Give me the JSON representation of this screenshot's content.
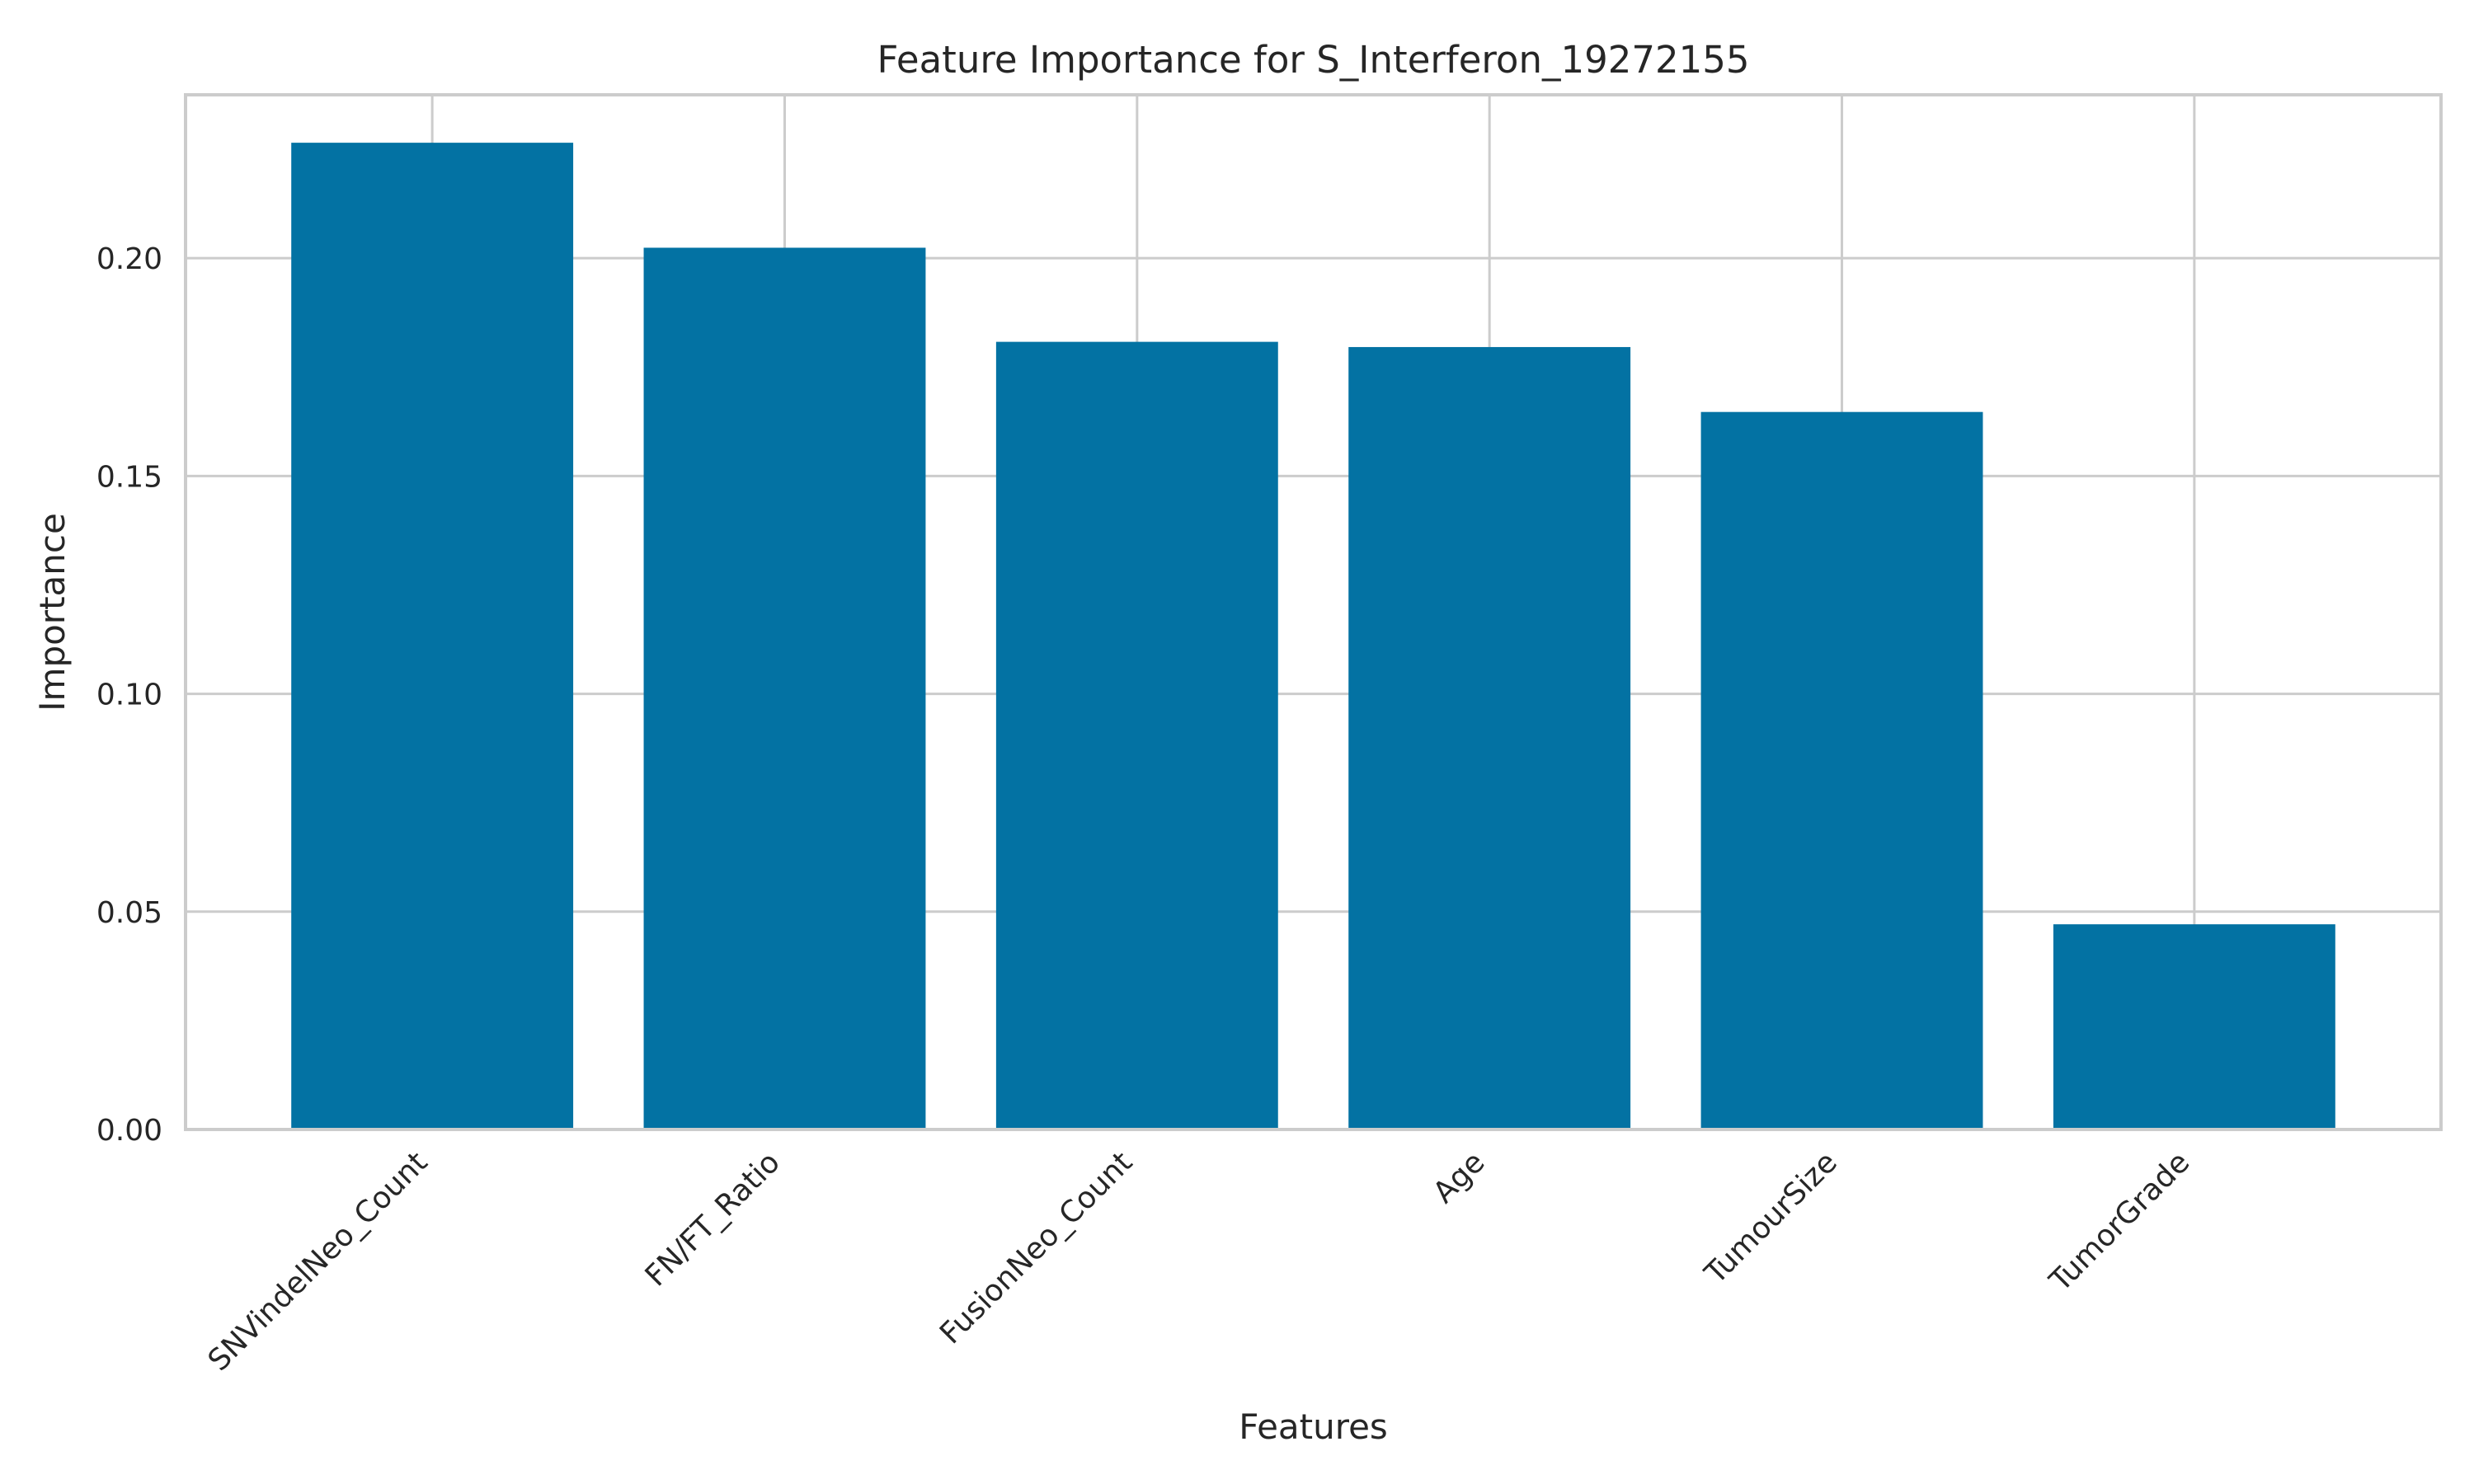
{
  "chart_data": {
    "type": "bar",
    "title": "Feature Importance for S_Interferon_19272155",
    "xlabel": "Features",
    "ylabel": "Importance",
    "categories": [
      "SNVindelNeo_Count",
      "FN/FT_Ratio",
      "FusionNeo_Count",
      "Age",
      "TumourSize",
      "TumorGrade"
    ],
    "values": [
      0.2265,
      0.2024,
      0.1808,
      0.1796,
      0.1647,
      0.0471
    ],
    "ylim": [
      0,
      0.2375
    ],
    "yticks": [
      0.0,
      0.05,
      0.1,
      0.15,
      0.2
    ],
    "ytick_labels": [
      "0.00",
      "0.05",
      "0.10",
      "0.15",
      "0.20"
    ],
    "grid": true,
    "bar_color": "#0372a3",
    "grid_color": "#cccccc"
  }
}
